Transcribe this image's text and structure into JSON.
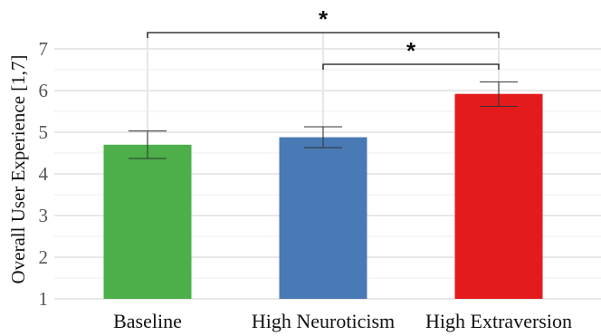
{
  "chart_data": {
    "type": "bar",
    "categories": [
      "Baseline",
      "High Neuroticism",
      "High Extraversion"
    ],
    "values": [
      4.7,
      4.88,
      5.92
    ],
    "error_low": [
      4.37,
      4.63,
      5.62
    ],
    "error_high": [
      5.03,
      5.13,
      6.21
    ],
    "colors": [
      "#4daf4a",
      "#4a7ab5",
      "#e41a1c"
    ],
    "title": "",
    "xlabel": "",
    "ylabel": "Overall User Experience [1,7]",
    "ylim": [
      1,
      7.4
    ],
    "yticks": [
      "1",
      "2",
      "3",
      "4",
      "5",
      "6",
      "7"
    ],
    "grid": true,
    "significance": [
      {
        "from": "Baseline",
        "to": "High Extraversion",
        "label": "*"
      },
      {
        "from": "High Neuroticism",
        "to": "High Extraversion",
        "label": "*"
      }
    ]
  }
}
